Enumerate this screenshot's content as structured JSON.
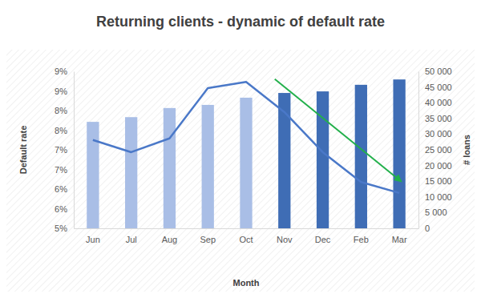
{
  "chart_data": {
    "type": "bar",
    "title": "Returning clients - dynamic of default rate",
    "x_label": "Month",
    "y_label": "Default rate",
    "y2_label": "# loans",
    "categories": [
      "Jun",
      "Jul",
      "Aug",
      "Sep",
      "Oct",
      "Nov",
      "Dec",
      "Feb",
      "Mar"
    ],
    "ylim": [
      5,
      9
    ],
    "yticks": [
      {
        "value": 5,
        "label": "5%"
      },
      {
        "value": 5.5,
        "label": "6%"
      },
      {
        "value": 6,
        "label": "6%"
      },
      {
        "value": 6.5,
        "label": "7%"
      },
      {
        "value": 7,
        "label": "7%"
      },
      {
        "value": 7.5,
        "label": "8%"
      },
      {
        "value": 8,
        "label": "8%"
      },
      {
        "value": 8.5,
        "label": "9%"
      },
      {
        "value": 9,
        "label": "9%"
      }
    ],
    "y2lim": [
      0,
      50000
    ],
    "y2ticks": [
      0,
      {
        "value": 5000,
        "label": "5 000"
      },
      {
        "value": 10000,
        "label": "10 000"
      },
      {
        "value": 15000,
        "label": "15 000"
      },
      {
        "value": 20000,
        "label": "20 000"
      },
      {
        "value": 25000,
        "label": "25 000"
      },
      {
        "value": 30000,
        "label": "30 000"
      },
      {
        "value": 35000,
        "label": "35 000"
      },
      {
        "value": 40000,
        "label": "40 000"
      },
      {
        "value": 45000,
        "label": "45 000"
      },
      {
        "value": 50000,
        "label": "50 000"
      }
    ],
    "grid": false,
    "series": [
      {
        "type": "bar",
        "axis": "y2",
        "colors": [
          "#a9bee6",
          "#a9bee6",
          "#a9bee6",
          "#a9bee6",
          "#a9bee6",
          "#3f6db5",
          "#3f6db5",
          "#3f6db5",
          "#3f6db5"
        ],
        "values": [
          33900,
          35400,
          38300,
          39300,
          41600,
          43100,
          43600,
          45700,
          47400
        ]
      },
      {
        "type": "line",
        "color": "#4a78c8",
        "values": [
          7.25,
          6.94,
          7.29,
          8.57,
          8.73,
          7.96,
          6.94,
          6.18,
          5.9
        ]
      }
    ]
  }
}
